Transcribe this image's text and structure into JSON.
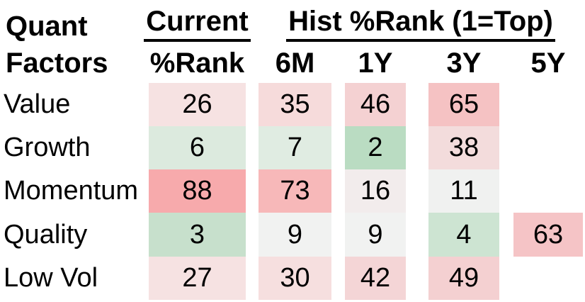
{
  "header": {
    "row_group_line1": "Quant",
    "row_group_line2": "Factors",
    "current_group": "Current",
    "current_sub": "%Rank",
    "hist_group": "Hist %Rank (1=Top)",
    "hist_cols": [
      "6M",
      "1Y",
      "3Y",
      "5Y"
    ]
  },
  "colors": {
    "text": "#000000",
    "background": "#ffffff",
    "strong_red": "#f7aaac",
    "strong_green": "#badcc2",
    "neutral": "#f1f2f1"
  },
  "chart_data": {
    "type": "heatmap",
    "row_header": "Quant Factors",
    "row_labels": [
      "Value",
      "Growth",
      "Momentum",
      "Quality",
      "Low Vol"
    ],
    "column_labels": [
      "Current %Rank",
      "6M",
      "1Y",
      "3Y",
      "5Y"
    ],
    "column_groups": [
      {
        "label": "Current",
        "columns": [
          "Current %Rank"
        ]
      },
      {
        "label": "Hist %Rank (1=Top)",
        "columns": [
          "6M",
          "1Y",
          "3Y",
          "5Y"
        ]
      }
    ],
    "value_range": [
      1,
      100
    ],
    "scale": "green = low %Rank (top), white = neutral, red = high %Rank",
    "values": [
      [
        26,
        35,
        46,
        65,
        null
      ],
      [
        6,
        7,
        2,
        38,
        null
      ],
      [
        88,
        73,
        16,
        11,
        null
      ],
      [
        3,
        9,
        9,
        4,
        63
      ],
      [
        27,
        30,
        42,
        49,
        null
      ]
    ],
    "cell_colors": [
      [
        "#f6e2e2",
        "#f6dbdb",
        "#f4d1d2",
        "#f5c2c3",
        null
      ],
      [
        "#dceade",
        "#e0ece2",
        "#badcc2",
        "#f3dcdc",
        null
      ],
      [
        "#f7aaac",
        "#f7b8b9",
        "#f2ecec",
        "#f0f1f0",
        null
      ],
      [
        "#c7e0cc",
        "#f1f2f1",
        "#f1f2f1",
        "#cde4d2",
        "#f5c4c6"
      ],
      [
        "#f6e2e2",
        "#f6dfdf",
        "#f4d5d6",
        "#f4d0d1",
        null
      ]
    ]
  }
}
